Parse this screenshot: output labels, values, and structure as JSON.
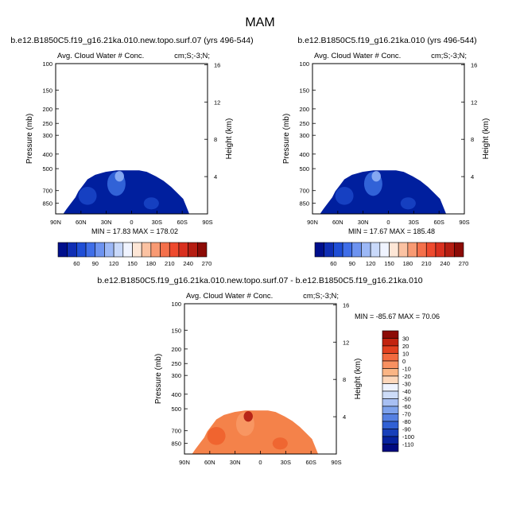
{
  "page": {
    "main_title": "MAM"
  },
  "chart_data": [
    {
      "type": "heatmap",
      "title": "b.e12.B1850C5.f19_g16.21ka.010.new.topo.surf.07 (yrs 496-544)",
      "left_string": "Avg. Cloud Water # Conc.",
      "right_string": "cm;S;-3;N;",
      "ylabel": "Pressure (mb)",
      "ylabel_right": "Height (km)",
      "xticks": [
        "90N",
        "60N",
        "30N",
        "0",
        "30S",
        "60S",
        "90S"
      ],
      "yticks": [
        "100",
        "150",
        "200",
        "250",
        "300",
        "400",
        "500",
        "700",
        "850"
      ],
      "yticks_right": [
        "16",
        "12",
        "8",
        "4"
      ],
      "min_max_text": "MIN = 17.83  MAX = 178.02",
      "colorbar_labels": [
        "60",
        "90",
        "120",
        "150",
        "180",
        "210",
        "240",
        "270"
      ],
      "colorbar_colors": [
        "#000f8c",
        "#0f2eb4",
        "#1f4ed6",
        "#3f6ee8",
        "#6d93f0",
        "#9cb8f6",
        "#c9d9fa",
        "#f0f4ff",
        "#fde6d6",
        "#fbc2a2",
        "#f89a73",
        "#f4704b",
        "#ee4a2e",
        "#d9301f",
        "#b51d12",
        "#8c0b06"
      ],
      "field_color": "#001f9e",
      "highlight_colors": [
        "#1a47c8",
        "#3a6ee0",
        "#8fb0f5"
      ]
    },
    {
      "type": "heatmap",
      "title": "b.e12.B1850C5.f19_g16.21ka.010 (yrs 496-544)",
      "left_string": "Avg. Cloud Water # Conc.",
      "right_string": "cm;S;-3;N;",
      "ylabel": "Pressure (mb)",
      "ylabel_right": "Height (km)",
      "xticks": [
        "90N",
        "60N",
        "30N",
        "0",
        "30S",
        "60S",
        "90S"
      ],
      "yticks": [
        "100",
        "150",
        "200",
        "250",
        "300",
        "400",
        "500",
        "700",
        "850"
      ],
      "yticks_right": [
        "16",
        "12",
        "8",
        "4"
      ],
      "min_max_text": "MIN = 17.67  MAX = 185.48",
      "colorbar_labels": [
        "60",
        "90",
        "120",
        "150",
        "180",
        "210",
        "240",
        "270"
      ],
      "colorbar_colors": [
        "#000f8c",
        "#0f2eb4",
        "#1f4ed6",
        "#3f6ee8",
        "#6d93f0",
        "#9cb8f6",
        "#c9d9fa",
        "#f0f4ff",
        "#fde6d6",
        "#fbc2a2",
        "#f89a73",
        "#f4704b",
        "#ee4a2e",
        "#d9301f",
        "#b51d12",
        "#8c0b06"
      ],
      "field_color": "#001f9e",
      "highlight_colors": [
        "#1a47c8",
        "#3a6ee0",
        "#8fb0f5"
      ]
    },
    {
      "type": "heatmap",
      "title": "b.e12.B1850C5.f19_g16.21ka.010.new.topo.surf.07 - b.e12.B1850C5.f19_g16.21ka.010",
      "left_string": "Avg. Cloud Water # Conc.",
      "right_string": "cm;S;-3;N;",
      "ylabel": "Pressure (mb)",
      "ylabel_right": "Height (km)",
      "xticks": [
        "90N",
        "60N",
        "30N",
        "0",
        "30S",
        "60S",
        "90S"
      ],
      "yticks": [
        "100",
        "150",
        "200",
        "250",
        "300",
        "400",
        "500",
        "700",
        "850"
      ],
      "yticks_right": [
        "16",
        "12",
        "8",
        "4"
      ],
      "min_max_text": "MIN = -85.67  MAX = 70.06",
      "colorbar_labels": [
        "30",
        "20",
        "10",
        "0",
        "-10",
        "-20",
        "-30",
        "-40",
        "-50",
        "-60",
        "-70",
        "-80",
        "-90",
        "-100",
        "-110"
      ],
      "colorbar_colors": [
        "#8c0b06",
        "#c2230f",
        "#e2401f",
        "#f26a3f",
        "#f89060",
        "#fab585",
        "#fcd7bb",
        "#eef3ff",
        "#cddcf8",
        "#a8c0f3",
        "#7ea2ec",
        "#5580e2",
        "#3060d4",
        "#173fba",
        "#06229e",
        "#000a80"
      ],
      "field_color": "#f4824a",
      "highlight_colors": [
        "#ee5f2a",
        "#f89a66",
        "#b01a10"
      ]
    }
  ]
}
